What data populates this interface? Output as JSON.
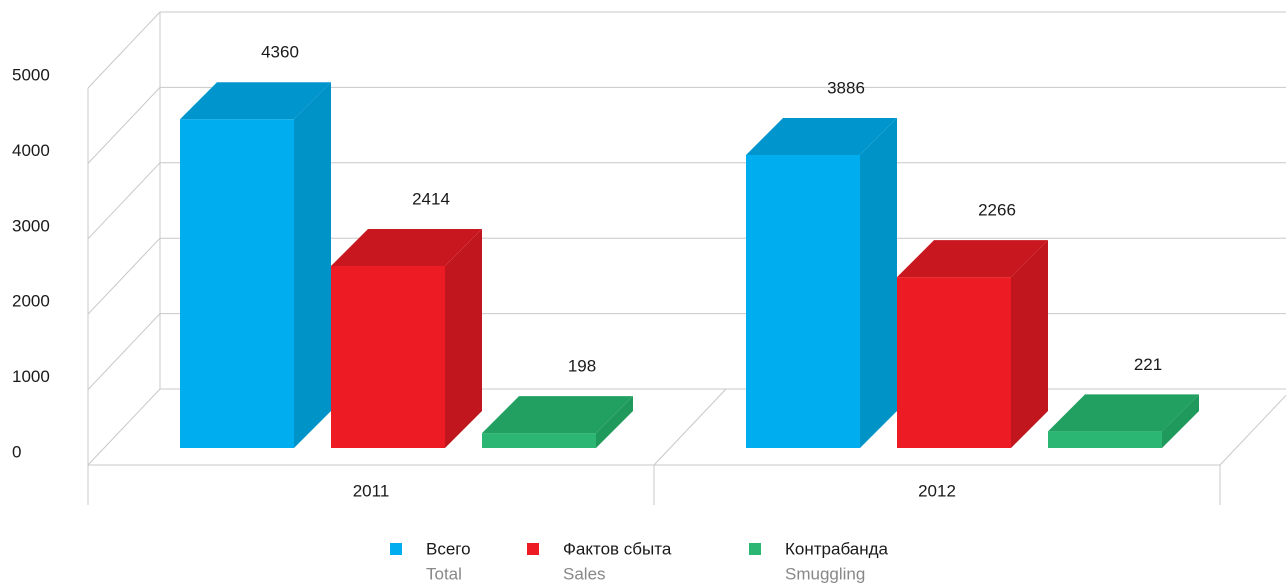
{
  "chart_data": {
    "type": "bar3d",
    "categories": [
      "2011",
      "2012"
    ],
    "series": [
      {
        "name": "Всего",
        "name_en": "Total",
        "color": "#00aeef",
        "side": "#0093c8",
        "top": "#0096cd",
        "values": [
          4360,
          3886
        ]
      },
      {
        "name": "Фактов сбыта",
        "name_en": "Sales",
        "color": "#ed1c24",
        "side": "#c1161d",
        "top": "#c8171f",
        "values": [
          2414,
          2266
        ]
      },
      {
        "name": "Контрабанда",
        "name_en": "Smuggling",
        "color": "#2bb673",
        "side": "#1f9a5c",
        "top": "#22a062",
        "values": [
          198,
          221
        ]
      }
    ],
    "ylim": [
      0,
      5000
    ],
    "yticks": [
      0,
      1000,
      2000,
      3000,
      4000,
      5000
    ],
    "grid": true,
    "legend": "bottom"
  }
}
